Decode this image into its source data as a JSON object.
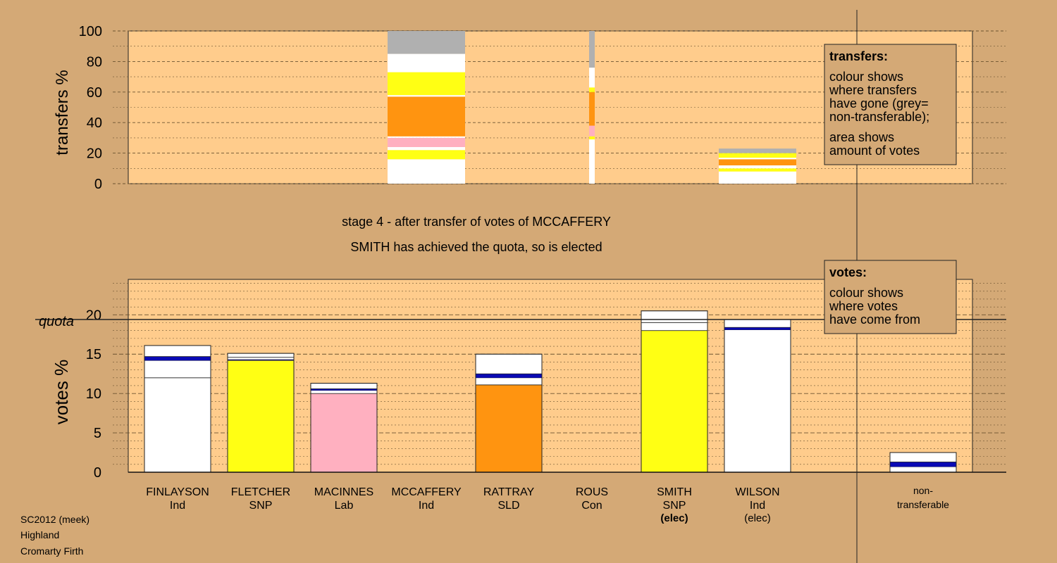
{
  "colors": {
    "background": "#d4a976",
    "plot_area": "#ffcc8c",
    "grid": "#8a6a40",
    "highlight": "#0a0ab4",
    "white": "#ffffff",
    "yellow": "#ffff14",
    "pink": "#ffb0c0",
    "orange": "#ff9410",
    "grey": "#b0b0b0"
  },
  "stage_title": "stage 4 - after transfer of votes of MCCAFFERY",
  "stage_subtitle": "SMITH has achieved the quota, so is elected",
  "footer": {
    "line1": "SC2012 (meek)",
    "line2": "Highland",
    "line3": "Cromarty Firth"
  },
  "legend_transfers": {
    "title": "transfers:",
    "lines": [
      "colour shows",
      "where transfers",
      "have gone (grey=",
      "non-transferable);",
      "area shows",
      "amount of votes"
    ]
  },
  "legend_votes": {
    "title": "votes:",
    "lines": [
      "colour shows",
      "where votes",
      "have come from"
    ]
  },
  "chart_data": [
    {
      "type": "bar",
      "stacked": true,
      "ylabel": "transfers %",
      "ylim": [
        0,
        100
      ],
      "yticks": [
        0,
        20,
        40,
        60,
        80,
        100
      ],
      "grid": true,
      "transfers": [
        {
          "column": "MCCAFFERY",
          "width_share": 1.0,
          "segments": [
            {
              "color": "white",
              "from": 0,
              "to": 16
            },
            {
              "color": "yellow",
              "from": 16,
              "to": 22
            },
            {
              "color": "white",
              "from": 22,
              "to": 24
            },
            {
              "color": "pink",
              "from": 24,
              "to": 30
            },
            {
              "color": "white",
              "from": 30,
              "to": 31
            },
            {
              "color": "orange",
              "from": 31,
              "to": 57
            },
            {
              "color": "white",
              "from": 57,
              "to": 58
            },
            {
              "color": "yellow",
              "from": 58,
              "to": 73
            },
            {
              "color": "white",
              "from": 73,
              "to": 85
            },
            {
              "color": "grey",
              "from": 85,
              "to": 100
            }
          ]
        },
        {
          "column": "ROUS",
          "width_share": 0.08,
          "segments": [
            {
              "color": "white",
              "from": 0,
              "to": 29
            },
            {
              "color": "yellow",
              "from": 29,
              "to": 31
            },
            {
              "color": "pink",
              "from": 31,
              "to": 38
            },
            {
              "color": "orange",
              "from": 38,
              "to": 60
            },
            {
              "color": "yellow",
              "from": 60,
              "to": 63
            },
            {
              "color": "white",
              "from": 63,
              "to": 76
            },
            {
              "color": "grey",
              "from": 76,
              "to": 100
            }
          ]
        },
        {
          "column": "WILSON",
          "width_share": 1.0,
          "segments": [
            {
              "color": "white",
              "from": 0,
              "to": 8
            },
            {
              "color": "yellow",
              "from": 8,
              "to": 10
            },
            {
              "color": "white",
              "from": 10,
              "to": 12
            },
            {
              "color": "orange",
              "from": 12,
              "to": 16
            },
            {
              "color": "white",
              "from": 16,
              "to": 17
            },
            {
              "color": "yellow",
              "from": 17,
              "to": 20
            },
            {
              "color": "grey",
              "from": 20,
              "to": 23
            }
          ]
        }
      ]
    },
    {
      "type": "bar",
      "stacked": true,
      "ylabel": "votes %",
      "ylim": [
        0,
        24.5
      ],
      "yticks": [
        0,
        5,
        10,
        15,
        20
      ],
      "quota": 19.4,
      "quota_label": "quota",
      "grid": true,
      "categories": [
        {
          "name": "FINLAYSON",
          "party": "Ind",
          "status": "",
          "total": 16.1,
          "segments": [
            {
              "color": "white",
              "to": 12.0
            },
            {
              "color": "white",
              "to": 14.2
            },
            {
              "color": "highlight",
              "to": 14.7
            },
            {
              "color": "white",
              "to": 16.1
            }
          ]
        },
        {
          "name": "FLETCHER",
          "party": "SNP",
          "status": "",
          "total": 15.1,
          "segments": [
            {
              "color": "yellow",
              "to": 14.2
            },
            {
              "color": "highlight",
              "to": 14.3
            },
            {
              "color": "white",
              "to": 14.6
            },
            {
              "color": "white",
              "to": 15.1
            }
          ]
        },
        {
          "name": "MACINNES",
          "party": "Lab",
          "status": "",
          "total": 11.3,
          "segments": [
            {
              "color": "pink",
              "to": 10.0
            },
            {
              "color": "white",
              "to": 10.4
            },
            {
              "color": "highlight",
              "to": 10.6
            },
            {
              "color": "white",
              "to": 11.3
            }
          ]
        },
        {
          "name": "MCCAFFERY",
          "party": "Ind",
          "status": "",
          "total": 0,
          "segments": []
        },
        {
          "name": "RATTRAY",
          "party": "SLD",
          "status": "",
          "total": 15.0,
          "segments": [
            {
              "color": "orange",
              "to": 11.1
            },
            {
              "color": "white",
              "to": 12.0
            },
            {
              "color": "highlight",
              "to": 12.5
            },
            {
              "color": "white",
              "to": 15.0
            }
          ]
        },
        {
          "name": "ROUS",
          "party": "Con",
          "status": "",
          "total": 0,
          "segments": []
        },
        {
          "name": "SMITH",
          "party": "SNP",
          "status": "(elec)",
          "status_bold": true,
          "total": 20.5,
          "segments": [
            {
              "color": "yellow",
              "to": 18.0
            },
            {
              "color": "white",
              "to": 19.0
            },
            {
              "color": "white",
              "to": 20.5
            }
          ]
        },
        {
          "name": "WILSON",
          "party": "Ind",
          "status": "(elec)",
          "status_bold": false,
          "total": 19.4,
          "segments": [
            {
              "color": "white",
              "to": 18.1
            },
            {
              "color": "highlight",
              "to": 18.4
            },
            {
              "color": "white",
              "to": 19.4
            }
          ]
        }
      ],
      "nontransferable": {
        "label_line1": "non-",
        "label_line2": "transferable",
        "total": 2.5,
        "segments": [
          {
            "color": "white",
            "to": 0.7
          },
          {
            "color": "highlight",
            "to": 1.3
          },
          {
            "color": "white",
            "to": 2.5
          }
        ]
      }
    }
  ]
}
